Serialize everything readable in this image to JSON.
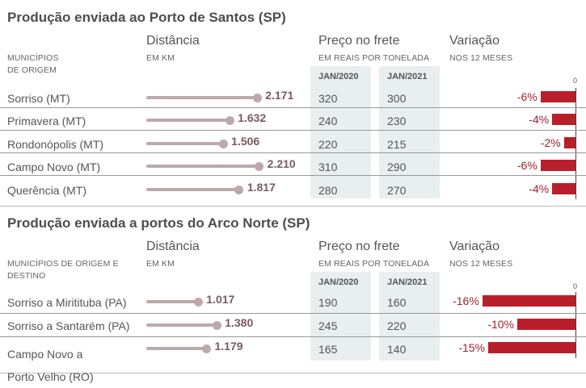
{
  "colors": {
    "lollipop": "#bda9ab",
    "distance_text": "#7a5a60",
    "bar": "#b91f2b",
    "percent_text": "#a8202c",
    "price_column_bg": "#e9eeee"
  },
  "chart_data": [
    {
      "type": "table",
      "title": "Produção enviada ao Porto de Santos (SP)",
      "columns": {
        "origin": {
          "label": "MUNICÍPIOS DE ORIGEM"
        },
        "distance": {
          "title": "Distância",
          "unit": "EM KM"
        },
        "price": {
          "title": "Preço no frete",
          "unit": "EM REAIS POR TONELADA",
          "periods": [
            "JAN/2020",
            "JAN/2021"
          ]
        },
        "variation": {
          "title": "Variação",
          "unit": "NOS 12 MESES",
          "axis_zero_label": "0"
        }
      },
      "rows": [
        {
          "origin": "Sorriso (MT)",
          "distance_km": 2171,
          "distance_label": "2.171",
          "price_2020": "320",
          "price_2021": "300",
          "variation_pct": -6,
          "variation_label": "-6%"
        },
        {
          "origin": "Primavera (MT)",
          "distance_km": 1632,
          "distance_label": "1.632",
          "price_2020": "240",
          "price_2021": "230",
          "variation_pct": -4,
          "variation_label": "-4%"
        },
        {
          "origin": "Rondonópolis (MT)",
          "distance_km": 1506,
          "distance_label": "1.506",
          "price_2020": "220",
          "price_2021": "215",
          "variation_pct": -2,
          "variation_label": "-2%"
        },
        {
          "origin": "Campo Novo (MT)",
          "distance_km": 2210,
          "distance_label": "2.210",
          "price_2020": "310",
          "price_2021": "290",
          "variation_pct": -6,
          "variation_label": "-6%"
        },
        {
          "origin": "Querência (MT)",
          "distance_km": 1817,
          "distance_label": "1.817",
          "price_2020": "280",
          "price_2021": "270",
          "variation_pct": -4,
          "variation_label": "-4%"
        }
      ]
    },
    {
      "type": "table",
      "title": "Produção enviada a portos do Arco Norte (SP)",
      "columns": {
        "origin": {
          "label": "MUNICÍPIOS DE ORIGEM E DESTINO"
        },
        "distance": {
          "title": "Distância",
          "unit": "EM KM"
        },
        "price": {
          "title": "Preço no frete",
          "unit": "EM REAIS POR TONELADA",
          "periods": [
            "JAN/2020",
            "JAN/2021"
          ]
        },
        "variation": {
          "title": "Variação",
          "unit": "NOS 12 MESES",
          "axis_zero_label": "0"
        }
      },
      "rows": [
        {
          "origin": "Sorriso a Miritituba (PA)",
          "distance_km": 1017,
          "distance_label": "1.017",
          "price_2020": "190",
          "price_2021": "160",
          "variation_pct": -16,
          "variation_label": "-16%"
        },
        {
          "origin": "Sorriso a Santarém (PA)",
          "distance_km": 1380,
          "distance_label": "1.380",
          "price_2020": "245",
          "price_2021": "220",
          "variation_pct": -10,
          "variation_label": "-10%"
        },
        {
          "origin": "Campo Novo a Porto Velho (RO)",
          "distance_km": 1179,
          "distance_label": "1.179",
          "price_2020": "165",
          "price_2021": "140",
          "variation_pct": -15,
          "variation_label": "-15%"
        }
      ]
    }
  ]
}
